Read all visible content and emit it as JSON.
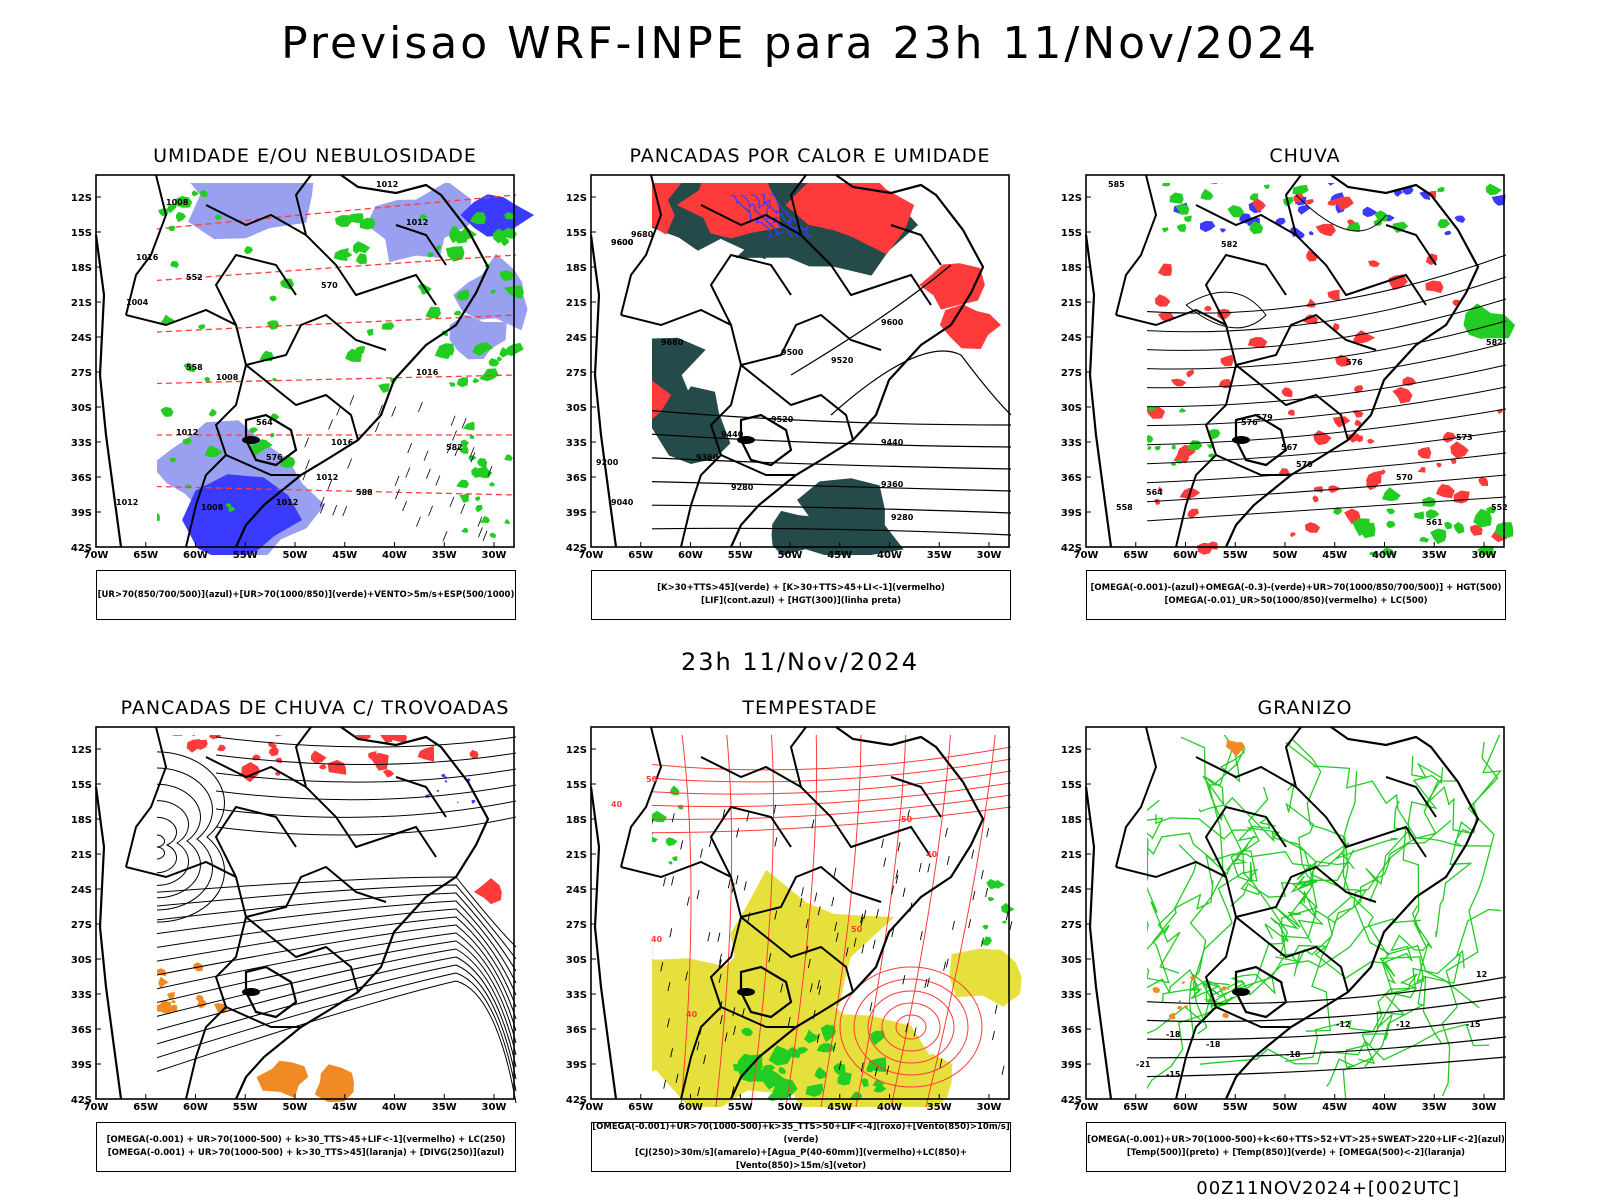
{
  "title": "Previsao WRF-INPE  para 23h 11/Nov/2024",
  "subtitle": "23h 11/Nov/2024",
  "footer": "00Z11NOV2024+[002UTC]",
  "axis": {
    "lat_labels": [
      "12S",
      "15S",
      "18S",
      "21S",
      "24S",
      "27S",
      "30S",
      "33S",
      "36S",
      "39S",
      "42S"
    ],
    "lon_labels": [
      "70W",
      "65W",
      "60W",
      "55W",
      "50W",
      "45W",
      "40W",
      "35W",
      "30W"
    ]
  },
  "colors": {
    "blue": "#3b3bff",
    "lightblue": "#9aa0f0",
    "green": "#22cc22",
    "red": "#ff3a3a",
    "orange": "#f08a24",
    "darkteal": "#244a4a",
    "yellow": "#e6e03c"
  },
  "panels": [
    {
      "title": "UMIDADE E/OU NEBULOSIDADE",
      "legend": [
        "[UR>70(850/700/500)](azul)+[UR>70(1000/850)](verde)+VENTO>5m/s+ESP(500/1000)"
      ],
      "labels": [
        "1012",
        "1008",
        "1016",
        "1012",
        "1004",
        "1008",
        "1016",
        "1012",
        "1016",
        "1012",
        "1008",
        "1012",
        "1012",
        "570",
        "552",
        "558",
        "564",
        "576",
        "582",
        "588"
      ]
    },
    {
      "title": "PANCADAS POR CALOR E UMIDADE",
      "legend": [
        "[K>30+TTS>45](verde) + [K>30+TTS>45+LI<-1](vermelho)",
        "[LIF](cont.azul) + [HGT(300)](linha preta)"
      ],
      "labels": [
        "9680",
        "9600",
        "9680",
        "9600",
        "9520",
        "9600",
        "9500",
        "9440",
        "9360",
        "9200",
        "9280",
        "9040",
        "9520",
        "9440",
        "9360",
        "9280"
      ]
    },
    {
      "title": "CHUVA",
      "legend": [
        "[OMEGA(-0.001)-(azul)+OMEGA(-0.3)-(verde)+UR>70(1000/850/700/500)] + HGT(500)",
        "[OMEGA(-0.01)_UR>50(1000/850)(vermelho) + LC(500)"
      ],
      "labels": [
        "585",
        "582",
        "579",
        "576",
        "570",
        "567",
        "573",
        "570",
        "564",
        "558",
        "552",
        "561",
        "582",
        "576"
      ]
    },
    {
      "title": "PANCADAS DE CHUVA C/ TROVOADAS",
      "legend": [
        "[OMEGA(-0.001) + UR>70(1000-500) + k>30_TTS>45+LIF<-1](vermelho) + LC(250)",
        "[OMEGA(-0.001) + UR>70(1000-500) + k>30_TTS>45](laranja) + [DIVG(250)](azul)"
      ],
      "labels": []
    },
    {
      "title": "TEMPESTADE",
      "legend": [
        "[OMEGA(-0.001)+UR>70(1000-500)+k>35_TTS>50+LIF<-4](roxo)+[Vento(850)>10m/s](verde)",
        "[CJ(250)>30m/s](amarelo)+[Agua_P(40-60mm)](vermelho)+LC(850)+[Vento(850)>15m/s](vetor)"
      ],
      "labels": [
        "50",
        "40",
        "50",
        "40",
        "40",
        "50",
        "40"
      ]
    },
    {
      "title": "GRANIZO",
      "legend": [
        "[OMEGA(-0.001)+UR>70(1000-500)+k<60+TTS>52+VT>25+SWEAT>220+LIF<-2](azul)",
        "[Temp(500)](preto) + [Temp(850)](verde) + [OMEGA(500)<-2](laranja)"
      ],
      "labels": [
        "-18",
        "-15",
        "-21",
        "-18",
        "-12",
        "-18",
        "-15",
        "-12",
        "12"
      ]
    }
  ]
}
